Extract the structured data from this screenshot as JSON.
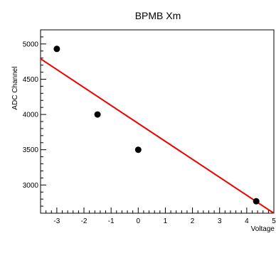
{
  "chart_data": {
    "type": "scatter",
    "title": "BPMB Xm",
    "xlabel": "Voltage",
    "ylabel": "ADC Channel",
    "xlim": [
      -3.6,
      5
    ],
    "ylim": [
      2600,
      5200
    ],
    "xticks": [
      -3,
      -2,
      -1,
      0,
      1,
      2,
      3,
      4,
      5
    ],
    "yticks": [
      3000,
      3500,
      4000,
      4500,
      5000
    ],
    "points": [
      {
        "x": -3.0,
        "y": 4930
      },
      {
        "x": -1.5,
        "y": 4000
      },
      {
        "x": 0.0,
        "y": 3500
      },
      {
        "x": 4.35,
        "y": 2770
      }
    ],
    "fit_line": {
      "x": [
        -3.6,
        5.0
      ],
      "y": [
        4790,
        2600
      ]
    },
    "colors": {
      "points": "#000000",
      "fit": "#ee0000",
      "axes": "#000000"
    },
    "grid": false
  }
}
